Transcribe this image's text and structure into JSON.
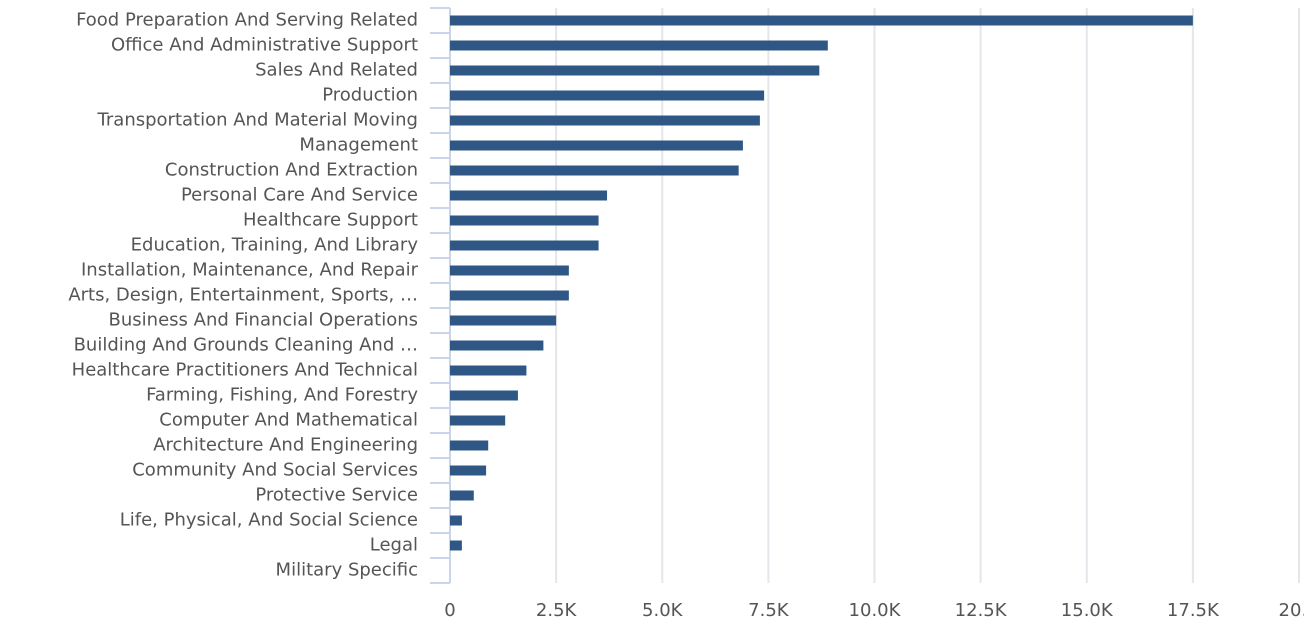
{
  "chart_data": {
    "type": "bar",
    "orientation": "horizontal",
    "color": "#2f5785",
    "categories": [
      "Food Preparation And Serving Related",
      "Office And Administrative Support",
      "Sales And Related",
      "Production",
      "Transportation And Material Moving",
      "Management",
      "Construction And Extraction",
      "Personal Care And Service",
      "Healthcare Support",
      "Education, Training, And Library",
      "Installation, Maintenance, And Repair",
      "Arts, Design, Entertainment, Sports, …",
      "Business And Financial Operations",
      "Building And Grounds Cleaning And …",
      "Healthcare Practitioners And Technical",
      "Farming, Fishing, And Forestry",
      "Computer And Mathematical",
      "Architecture And Engineering",
      "Community And Social Services",
      "Protective Service",
      "Life, Physical, And Social Science",
      "Legal",
      "Military Specific"
    ],
    "values": [
      17500,
      8900,
      8700,
      7400,
      7300,
      6900,
      6800,
      3700,
      3500,
      3500,
      2800,
      2800,
      2500,
      2200,
      1800,
      1600,
      1300,
      900,
      850,
      560,
      280,
      280,
      0
    ],
    "xlim": [
      0,
      20000
    ],
    "xticks": [
      0,
      {
        "value": 2500,
        "label": "2.5K"
      },
      {
        "value": 5000,
        "label": "5.0K"
      },
      {
        "value": 7500,
        "label": "7.5K"
      },
      {
        "value": 10000,
        "label": "10.0K"
      },
      {
        "value": 12500,
        "label": "12.5K"
      },
      {
        "value": 15000,
        "label": "15.0K"
      },
      {
        "value": 17500,
        "label": "17.5K"
      },
      {
        "value": 20000,
        "label": "20…"
      }
    ],
    "grid": true
  }
}
